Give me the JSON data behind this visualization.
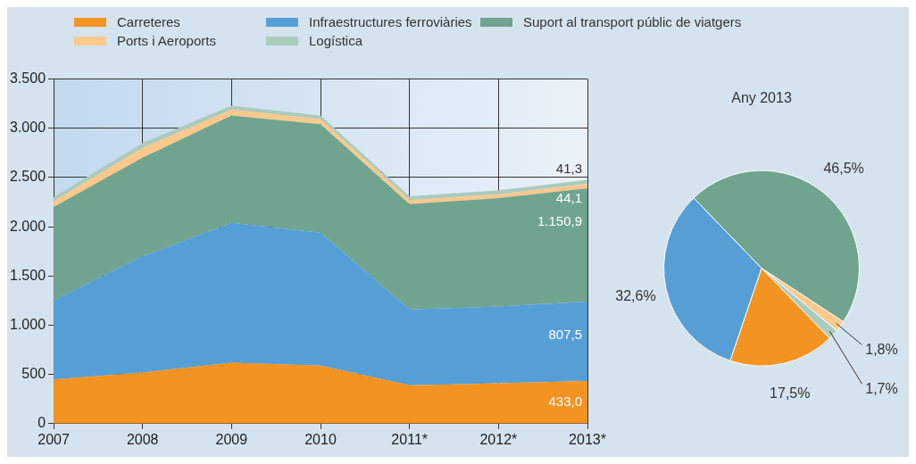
{
  "chart_data": [
    {
      "type": "area",
      "stacked": true,
      "categories": [
        "2007",
        "2008",
        "2009",
        "2010",
        "2011*",
        "2012*",
        "2013*"
      ],
      "series": [
        {
          "name": "Carreteres",
          "color": "#f39322",
          "values": [
            450,
            520,
            620,
            590,
            390,
            410,
            433.0
          ],
          "value_labels": [
            null,
            null,
            null,
            null,
            null,
            null,
            "433,0"
          ]
        },
        {
          "name": "Infraestructures ferroviàries",
          "color": "#569fd6",
          "values": [
            800,
            1180,
            1420,
            1350,
            770,
            780,
            807.5
          ],
          "value_labels": [
            null,
            null,
            null,
            null,
            null,
            null,
            "807,5"
          ]
        },
        {
          "name": "Suport al transport públic de viatgers",
          "color": "#70a48f",
          "values": [
            950,
            1000,
            1090,
            1100,
            1070,
            1100,
            1150.9
          ],
          "value_labels": [
            null,
            null,
            null,
            null,
            null,
            null,
            "1.150,9"
          ]
        },
        {
          "name": "Ports i Aeroports",
          "color": "#fbc98b",
          "values": [
            60,
            100,
            60,
            50,
            40,
            40,
            44.1
          ],
          "value_labels": [
            null,
            null,
            null,
            null,
            null,
            null,
            "44,1"
          ]
        },
        {
          "name": "Logística",
          "color": "#abcbbe",
          "values": [
            40,
            50,
            40,
            40,
            40,
            40,
            41.3
          ],
          "value_labels": [
            null,
            null,
            null,
            null,
            null,
            null,
            "41,3"
          ]
        }
      ],
      "ylim": [
        0,
        3500
      ],
      "yticks": [
        {
          "value": 0,
          "label": "0"
        },
        {
          "value": 500,
          "label": "500"
        },
        {
          "value": 1000,
          "label": "1.000"
        },
        {
          "value": 1500,
          "label": "1.500"
        },
        {
          "value": 2000,
          "label": "2.000"
        },
        {
          "value": 2500,
          "label": "2.500"
        },
        {
          "value": 3000,
          "label": "3.000"
        },
        {
          "value": 3500,
          "label": "3.500"
        }
      ],
      "grid": true,
      "legend": "top"
    },
    {
      "type": "pie",
      "title": "Any 2013",
      "categories": [
        null,
        null,
        null,
        null,
        null
      ],
      "values": [
        46.5,
        1.8,
        1.7,
        17.5,
        32.6
      ],
      "colors": [
        "#70a48f",
        "#fbc98b",
        "#abcbbe",
        "#f39322",
        "#569fd6"
      ],
      "value_labels": [
        "46,5%",
        "1,8%",
        "1,7%",
        "17,5%",
        "32,6%"
      ]
    }
  ]
}
